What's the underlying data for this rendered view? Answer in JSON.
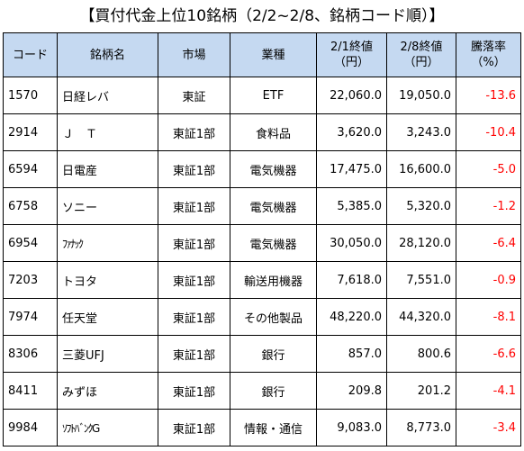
{
  "title": "【買付代金上位10銘柄（2/2~2/8、銘柄コード順）】",
  "headers": {
    "code": "コード",
    "name": "銘柄名",
    "market": "市場",
    "industry": "業種",
    "price_0201_line1": "2/1終値",
    "price_0201_line2": "（円）",
    "price_0208_line1": "2/8終値",
    "price_0208_line2": "（円）",
    "rate_line1": "騰落率",
    "rate_line2": "（%）"
  },
  "rows": [
    {
      "code": "1570",
      "name": "日経レバ",
      "market": "東証",
      "industry": "ETF",
      "price_0201": "22,060.0",
      "price_0208": "19,050.0",
      "rate": "-13.6"
    },
    {
      "code": "2914",
      "name": "Ｊ　Ｔ",
      "market": "東証1部",
      "industry": "食料品",
      "price_0201": "3,620.0",
      "price_0208": "3,243.0",
      "rate": "-10.4"
    },
    {
      "code": "6594",
      "name": "日電産",
      "market": "東証1部",
      "industry": "電気機器",
      "price_0201": "17,475.0",
      "price_0208": "16,600.0",
      "rate": "-5.0"
    },
    {
      "code": "6758",
      "name": "ソニー",
      "market": "東証1部",
      "industry": "電気機器",
      "price_0201": "5,385.0",
      "price_0208": "5,320.0",
      "rate": "-1.2"
    },
    {
      "code": "6954",
      "name": "ﾌｧﾅｯｸ",
      "market": "東証1部",
      "industry": "電気機器",
      "price_0201": "30,050.0",
      "price_0208": "28,120.0",
      "rate": "-6.4"
    },
    {
      "code": "7203",
      "name": "トヨタ",
      "market": "東証1部",
      "industry": "輸送用機器",
      "price_0201": "7,618.0",
      "price_0208": "7,551.0",
      "rate": "-0.9"
    },
    {
      "code": "7974",
      "name": "任天堂",
      "market": "東証1部",
      "industry": "その他製品",
      "price_0201": "48,220.0",
      "price_0208": "44,320.0",
      "rate": "-8.1"
    },
    {
      "code": "8306",
      "name": "三菱UFJ",
      "market": "東証1部",
      "industry": "銀行",
      "price_0201": "857.0",
      "price_0208": "800.6",
      "rate": "-6.6"
    },
    {
      "code": "8411",
      "name": "みずほ",
      "market": "東証1部",
      "industry": "銀行",
      "price_0201": "209.8",
      "price_0208": "201.2",
      "rate": "-4.1"
    },
    {
      "code": "9984",
      "name": "ｿﾌﾄﾊﾞﾝｸG",
      "market": "東証1部",
      "industry": "情報・通信",
      "price_0201": "9,083.0",
      "price_0208": "8,773.0",
      "rate": "-3.4"
    }
  ],
  "colors": {
    "header_bg": "#c5d9f1",
    "negative_rate": "#ff0000"
  }
}
